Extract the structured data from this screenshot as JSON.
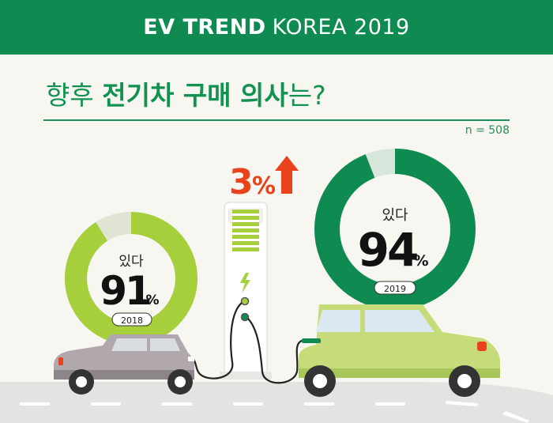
{
  "banner": {
    "title_bold": "EV TREND",
    "title_light": "KOREA 2019"
  },
  "question": {
    "part1": "향후 ",
    "part2": "전기차 구매 의사",
    "part3": "는?"
  },
  "sample_size": "n = 508",
  "increase": {
    "value": "3",
    "unit": "%"
  },
  "left_donut": {
    "answer": "있다",
    "value": "91",
    "unit": "%",
    "year": "2018",
    "fraction": 0.91
  },
  "right_donut": {
    "answer": "있다",
    "value": "94",
    "unit": "%",
    "year": "2019",
    "fraction": 0.94
  },
  "colors": {
    "banner": "#0f8b52",
    "left_donut": "#a5cf3b",
    "right_donut": "#0f8b52",
    "arrow": "#e9421c",
    "background": "#f7f6f1"
  },
  "icons": [
    "up-arrow-icon",
    "lightning-bolt-icon"
  ]
}
